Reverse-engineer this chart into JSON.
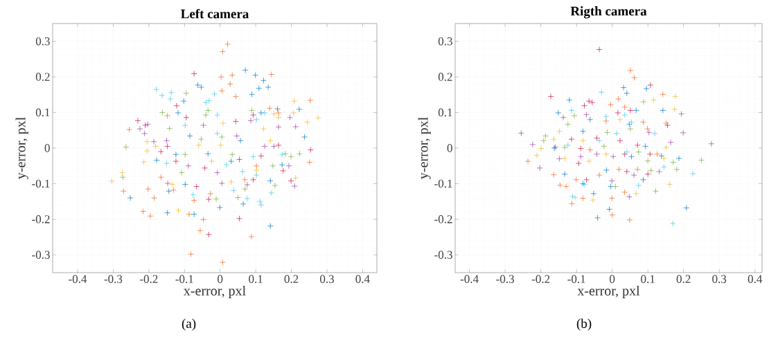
{
  "chart_data": [
    {
      "type": "scatter",
      "title": "Left camera",
      "xlabel": "x-error, pxl",
      "ylabel": "y-error, pxl",
      "annotations": [
        "(a)"
      ],
      "xlim": [
        -0.47,
        0.44
      ],
      "ylim": [
        -0.35,
        0.35
      ],
      "xticks": [
        -0.4,
        -0.3,
        -0.2,
        -0.1,
        0,
        0.1,
        0.2,
        0.3,
        0.4
      ],
      "yticks": [
        -0.3,
        -0.2,
        -0.1,
        0,
        0.1,
        0.2,
        0.3
      ],
      "grid": true,
      "marker": "cross",
      "series": [
        {
          "color": "#f5661a",
          "x": [
            0.021,
            0.007,
            0.003,
            0.034,
            0.144,
            0.005,
            0.028,
            -0.255,
            -0.148,
            -0.216,
            -0.196,
            -0.185,
            -0.271,
            -0.047,
            -0.056,
            -0.082,
            0.007,
            0.088,
            0.251,
            0.253,
            0.164,
            0.044,
            0.139,
            -0.202,
            -0.166,
            -0.087,
            -0.027,
            0.069,
            0.102,
            -0.131,
            -0.073
          ],
          "values": [
            0.292,
            0.271,
            0.2,
            0.205,
            0.207,
            0.161,
            0.18,
            0.052,
            0.091,
            -0.178,
            -0.191,
            -0.14,
            -0.121,
            -0.201,
            -0.232,
            -0.298,
            -0.321,
            -0.249,
            -0.04,
            0.134,
            0.099,
            0.145,
            0.112,
            -0.115,
            -0.082,
            -0.186,
            -0.128,
            -0.089,
            -0.05,
            -0.118,
            -0.147
          ]
        },
        {
          "color": "#0077c8",
          "x": [
            0.071,
            0.099,
            0.122,
            0.135,
            0.109,
            -0.053,
            -0.063,
            0.089,
            0.222,
            0.237,
            0.141,
            -0.148,
            -0.252,
            -0.001,
            0.065,
            -0.073,
            -0.102,
            -0.118,
            -0.178,
            -0.124,
            -0.085,
            -0.034,
            0.161,
            0.141,
            0.174,
            0.031,
            0.115,
            0.057,
            -0.144,
            -0.098
          ],
          "values": [
            0.219,
            0.205,
            0.19,
            0.171,
            0.168,
            0.171,
            0.177,
            0.151,
            0.109,
            0.031,
            -0.219,
            -0.182,
            -0.14,
            -0.167,
            -0.157,
            -0.186,
            0.132,
            0.099,
            -0.034,
            -0.018,
            0.034,
            -0.016,
            0.11,
            -0.092,
            -0.047,
            -0.037,
            0.099,
            0.021,
            -0.121,
            -0.102
          ]
        },
        {
          "color": "#3cc8f0",
          "x": [
            -0.179,
            -0.163,
            -0.137,
            -0.14,
            -0.016,
            -0.04,
            -0.031,
            0.125,
            0.102,
            0.115,
            0.112,
            0.144,
            0.038,
            0.076,
            -0.076,
            -0.008,
            -0.008,
            0.063,
            0.093,
            0.102,
            0.174,
            -0.098,
            -0.15,
            0.018
          ],
          "values": [
            0.165,
            0.148,
            0.156,
            0.138,
            0.152,
            0.128,
            0.133,
            0.099,
            0.08,
            -0.16,
            -0.15,
            -0.126,
            -0.119,
            -0.142,
            -0.131,
            0.093,
            0.041,
            -0.066,
            -0.024,
            -0.076,
            -0.018,
            0.064,
            -0.043,
            -0.047
          ]
        },
        {
          "color": "#f5b820",
          "x": [
            0.208,
            0.275,
            0.245,
            0.206,
            0.151,
            0.164,
            -0.304,
            -0.275,
            -0.214,
            -0.205,
            -0.205,
            -0.181,
            -0.117,
            -0.134,
            0.008,
            0.002,
            0.031,
            0.102,
            0.122,
            0.141,
            0.212,
            -0.024,
            -0.06
          ],
          "values": [
            0.132,
            0.085,
            0.073,
            0.099,
            0.096,
            0.086,
            -0.093,
            -0.069,
            -0.039,
            -0.008,
            0.018,
            0.005,
            -0.175,
            -0.102,
            0.07,
            0.008,
            -0.095,
            -0.063,
            0.054,
            0.021,
            -0.084,
            -0.037,
            0.008
          ]
        },
        {
          "color": "#72b033",
          "x": [
            -0.264,
            -0.273,
            -0.095,
            -0.162,
            -0.142,
            -0.034,
            -0.04,
            0.223,
            0.199,
            0.183,
            0.154,
            0.07,
            0.05,
            -0.011,
            -0.108,
            -0.098,
            0.034,
            0.089,
            0.005,
            -0.053,
            0.148
          ],
          "values": [
            0.003,
            -0.082,
            0.154,
            0.1,
            0.055,
            0.106,
            0.093,
            -0.016,
            -0.024,
            -0.016,
            -0.105,
            -0.115,
            -0.139,
            -0.143,
            -0.069,
            -0.018,
            -0.018,
            0.106,
            0.031,
            0.025,
            -0.05
          ]
        },
        {
          "color": "#9c3fa8",
          "x": [
            -0.203,
            -0.225,
            -0.212,
            -0.186,
            -0.15,
            0.196,
            0.212,
            0.209,
            0.193,
            0.164,
            0.086,
            0.047,
            0.005,
            0.076,
            -0.008,
            -0.089,
            -0.147,
            -0.047,
            0.125,
            0.151
          ],
          "values": [
            0.067,
            0.054,
            0.041,
            0.018,
            0.021,
            0.086,
            0.06,
            -0.107,
            -0.05,
            0.059,
            0.077,
            0.034,
            -0.099,
            -0.103,
            -0.069,
            -0.05,
            -0.099,
            0.064,
            0.005,
            0.005
          ]
        },
        {
          "color": "#d0103f",
          "x": [
            -0.073,
            -0.122,
            -0.231,
            -0.21,
            -0.095,
            0.044,
            0.093,
            0.254,
            0.199,
            0.177,
            0.054,
            -0.032,
            -0.043,
            -0.166,
            -0.148,
            -0.124,
            0.054,
            0.093,
            -0.032,
            -0.066,
            0.164,
            0.115
          ],
          "values": [
            0.209,
            0.119,
            0.077,
            0.064,
            0.086,
            0.075,
            0.093,
            -0.005,
            -0.092,
            -0.064,
            -0.198,
            -0.243,
            -0.056,
            -0.01,
            0.005,
            -0.037,
            -0.032,
            -0.089,
            -0.144,
            -0.108,
            0.008,
            -0.022
          ]
        }
      ]
    },
    {
      "type": "scatter",
      "title": "Rigth camera",
      "xlabel": "x-error, pxl",
      "ylabel": "y-error, pxl",
      "annotations": [
        "(b)"
      ],
      "xlim": [
        -0.44,
        0.42
      ],
      "ylim": [
        -0.35,
        0.35
      ],
      "xticks": [
        -0.4,
        -0.3,
        -0.2,
        -0.1,
        0,
        0.1,
        0.2,
        0.3,
        0.4
      ],
      "yticks": [
        -0.3,
        -0.2,
        -0.1,
        0,
        0.1,
        0.2,
        0.3
      ],
      "grid": true,
      "marker": "cross",
      "series": [
        {
          "color": "#d0103f",
          "x": [
            -0.036,
            -0.172,
            -0.078,
            -0.065,
            -0.056,
            0.107,
            0.016,
            0.051,
            0.155,
            0.106,
            0.071,
            0.035,
            0.041,
            -0.088,
            -0.114,
            -0.094,
            -0.072,
            0.1,
            0.022,
            -0.043
          ],
          "values": [
            0.277,
            0.145,
            0.119,
            0.132,
            0.128,
            0.177,
            0.099,
            0.106,
            0.064,
            -0.017,
            0.008,
            -0.017,
            -0.066,
            -0.001,
            0.025,
            -0.043,
            -0.089,
            -0.073,
            0.021,
            0.028
          ]
        },
        {
          "color": "#f5661a",
          "x": [
            0.051,
            0.062,
            0.049,
            0,
            -0.236,
            -0.164,
            -0.146,
            -0.129,
            -0.113,
            -0.082,
            -0.001,
            0.035,
            0.017,
            0.035,
            0.142,
            0.151,
            0.087,
            0.099,
            -0.017,
            -0.004,
            -0.101,
            -0.036,
            0.019,
            0.071,
            0.126,
            -0.062
          ],
          "values": [
            0.218,
            0.198,
            -0.202,
            -0.188,
            -0.037,
            -0.075,
            -0.104,
            -0.108,
            -0.156,
            -0.141,
            -0.141,
            -0.124,
            0.138,
            0.115,
            0.151,
            0.07,
            0.073,
            0.054,
            0.076,
            0.122,
            -0.089,
            -0.076,
            -0.06,
            -0.06,
            -0.017,
            -0.005
          ]
        },
        {
          "color": "#0077c8",
          "x": [
            0.032,
            0.041,
            0.096,
            -0.12,
            -0.151,
            0.142,
            -0.008,
            -0.041,
            0.208,
            0.187,
            0.138,
            -0.052,
            -0.082,
            -0.004,
            -0.016,
            -0.062,
            -0.082,
            0.048,
            0.067,
            0.093,
            0.054,
            -0.162,
            -0.133,
            0.087
          ],
          "values": [
            0.17,
            0.154,
            0.167,
            0.135,
            0.099,
            0.106,
            -0.172,
            -0.196,
            -0.168,
            -0.029,
            -0.022,
            -0.128,
            -0.1,
            -0.108,
            -0.062,
            0.08,
            0.047,
            0.067,
            0.106,
            0.005,
            -0.024,
            0,
            -0.073,
            -0.089
          ]
        },
        {
          "color": "#3cc8f0",
          "x": [
            -0.03,
            -0.114,
            0.035,
            0.226,
            0.17,
            -0.111,
            -0.078,
            0.074,
            0.145,
            0.012,
            0.054,
            -0.124,
            -0.036,
            0.041,
            0.119,
            -0.017
          ],
          "values": [
            0.157,
            0.106,
            0.093,
            -0.072,
            -0.212,
            -0.136,
            -0.102,
            -0.105,
            -0.053,
            0.041,
            0.073,
            0.008,
            0.021,
            -0.011,
            0.041,
            0.089
          ]
        },
        {
          "color": "#f5b820",
          "x": [
            0.177,
            0.175,
            0.116,
            0.161,
            0.067,
            -0.054,
            -0.104,
            -0.199,
            -0.164,
            -0.148,
            -0.133,
            -0.082,
            0.022,
            0.151,
            0.145,
            -0.017,
            -0.065,
            -0.211
          ],
          "values": [
            0.145,
            0.109,
            0.135,
            -0.102,
            -0.128,
            -0.146,
            -0.139,
            -0.001,
            0.025,
            0.047,
            -0.029,
            0.021,
            0.08,
            0.002,
            -0.029,
            -0.017,
            -0.037,
            -0.021
          ]
        },
        {
          "color": "#72b033",
          "x": [
            -0.187,
            -0.192,
            -0.106,
            -0.124,
            0.088,
            0.25,
            0.181,
            0.171,
            0.122,
            0.109,
            0.074,
            0.051,
            -0.014,
            -0.023,
            -0.133,
            0.009,
            0.1
          ],
          "values": [
            0.034,
            0.021,
            0.091,
            0.067,
            0.13,
            -0.034,
            -0.06,
            -0.04,
            -0.121,
            -0.063,
            -0.011,
            0.054,
            0.044,
            0.005,
            0.002,
            -0.108,
            -0.036
          ]
        },
        {
          "color": "#9c3fa8",
          "x": [
            -0.255,
            -0.223,
            -0.203,
            0.278,
            0.194,
            0.199,
            -0.072,
            -0.137,
            0.048,
            0.061,
            0.132,
            0.164,
            -0.159,
            -0.148,
            -0.043,
            -0.001,
            0.103,
            -0.088,
            0.003
          ],
          "values": [
            0.042,
            0.01,
            -0.056,
            0.012,
            0.096,
            0.043,
            0.094,
            0.086,
            -0.137,
            -0.076,
            -0.066,
            0.016,
            0.003,
            -0.03,
            -0.017,
            -0.092,
            0.044,
            -0.024,
            -0.024
          ]
        }
      ]
    }
  ]
}
